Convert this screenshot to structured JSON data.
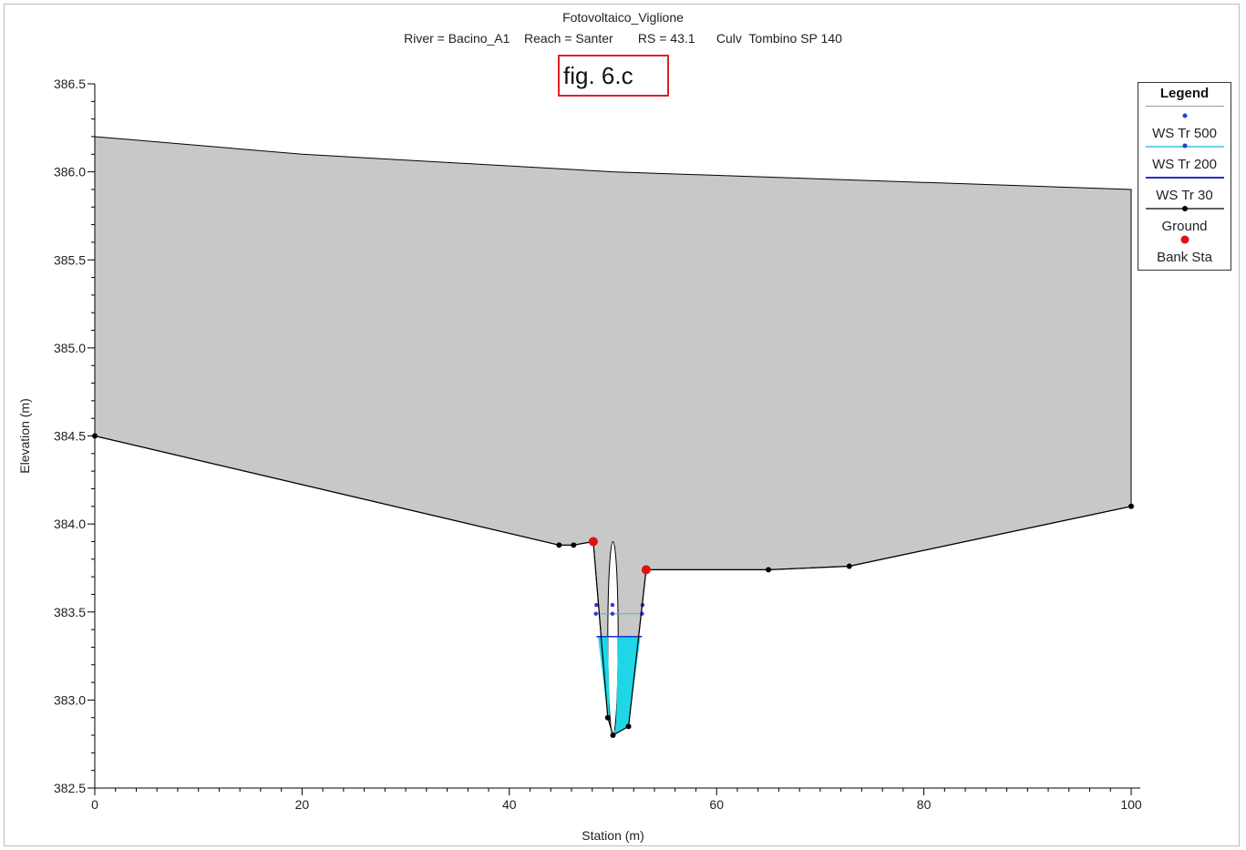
{
  "header": {
    "title": "Fotovoltaico_Viglione",
    "subtitle": "River = Bacino_A1    Reach = Santer       RS = 43.1      Culv  Tombino SP 140",
    "figure_label": "fig. 6.c"
  },
  "legend": {
    "title": "Legend",
    "items": [
      {
        "label": "WS Tr 500",
        "color": "#2a3ad8",
        "style": "dots"
      },
      {
        "label": "WS Tr 200",
        "color": "#36c7d8",
        "style": "line-dot"
      },
      {
        "label": "WS Tr 30",
        "color": "#1f2fd0",
        "style": "line"
      },
      {
        "label": "Ground",
        "color": "#000000",
        "style": "line-dot"
      },
      {
        "label": "Bank Sta",
        "color": "#e01010",
        "style": "dot"
      }
    ]
  },
  "chart_data": {
    "type": "area",
    "title": "Fotovoltaico_Viglione",
    "xlabel": "Station (m)",
    "ylabel": "Elevation (m)",
    "xlim": [
      0,
      100
    ],
    "ylim": [
      382.5,
      386.5
    ],
    "x_ticks": [
      0,
      20,
      40,
      60,
      80,
      100
    ],
    "y_ticks": [
      382.5,
      383.0,
      383.5,
      384.0,
      384.5,
      385.0,
      385.5,
      386.0,
      386.5
    ],
    "y_tick_labels": [
      "382.5",
      "383.0",
      "383.5",
      "384.0",
      "384.5",
      "385.0",
      "385.5",
      "386.0",
      "386.5"
    ],
    "grid": false,
    "legend_position": "right",
    "colors": {
      "deck": "#c8c8c8",
      "water": "#1fd6e6",
      "ground": "#000000"
    },
    "deck_top": {
      "x": [
        0,
        20,
        50,
        70,
        100
      ],
      "y": [
        386.2,
        386.1,
        386.0,
        385.96,
        385.9
      ]
    },
    "ground": {
      "x": [
        0,
        44.8,
        46.2,
        48.1,
        49.5,
        50.0,
        51.5,
        53.2,
        65.0,
        72.8,
        100
      ],
      "y": [
        384.5,
        383.88,
        383.88,
        383.9,
        382.9,
        382.8,
        382.85,
        383.74,
        383.74,
        383.76,
        384.1
      ]
    },
    "bank_stations": {
      "x": [
        48.1,
        53.2
      ],
      "y": [
        383.9,
        383.74
      ]
    },
    "culvert_opening": {
      "center_x": 50.0,
      "invert": 382.8,
      "top": 383.9,
      "half_width": 0.5
    },
    "series": [
      {
        "name": "WS Tr 500",
        "y": 383.54
      },
      {
        "name": "WS Tr 200",
        "y": 383.49
      },
      {
        "name": "WS Tr 30",
        "y": 383.36
      }
    ]
  }
}
